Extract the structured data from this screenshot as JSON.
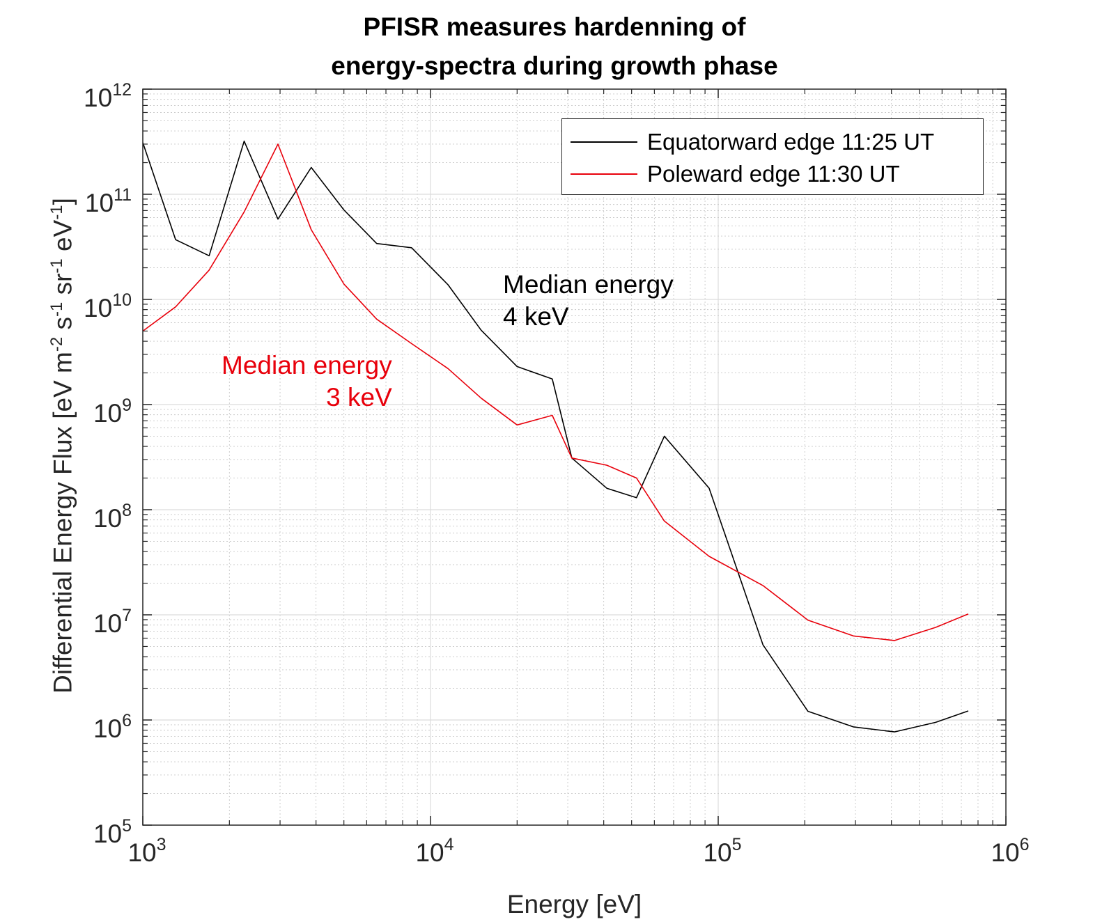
{
  "title_lines": [
    "PFISR measures hardenning of",
    "energy-spectra during growth phase"
  ],
  "chart_data": {
    "type": "line",
    "title": "PFISR measures hardenning of energy-spectra during growth phase",
    "xlabel": "Energy [eV]",
    "ylabel": "Differential Energy Flux [eV m-2 s-1 sr-1 eV-1]",
    "xscale": "log",
    "yscale": "log",
    "xlim": [
      1000,
      1000000
    ],
    "ylim": [
      100000,
      1000000000000
    ],
    "x_ticks": [
      1000,
      10000,
      100000,
      1000000
    ],
    "x_tick_labels": [
      {
        "base": "10",
        "exp": "3"
      },
      {
        "base": "10",
        "exp": "4"
      },
      {
        "base": "10",
        "exp": "5"
      },
      {
        "base": "10",
        "exp": "6"
      }
    ],
    "y_ticks": [
      100000,
      1000000,
      10000000,
      100000000,
      1000000000,
      10000000000,
      100000000000,
      1000000000000
    ],
    "y_tick_labels": [
      {
        "base": "10",
        "exp": "5"
      },
      {
        "base": "10",
        "exp": "6"
      },
      {
        "base": "10",
        "exp": "7"
      },
      {
        "base": "10",
        "exp": "8"
      },
      {
        "base": "10",
        "exp": "9"
      },
      {
        "base": "10",
        "exp": "10"
      },
      {
        "base": "10",
        "exp": "11"
      },
      {
        "base": "10",
        "exp": "12"
      }
    ],
    "grid": true,
    "minor_grid": true,
    "legend_position": "top-right",
    "series": [
      {
        "name": "Equatorward edge 11:25 UT",
        "color": "#000000",
        "x": [
          1000,
          1300,
          1700,
          2250,
          2950,
          3850,
          5000,
          6500,
          8600,
          11500,
          15000,
          20000,
          26500,
          31000,
          41000,
          52000,
          65000,
          93000,
          143000,
          205000,
          295000,
          410000,
          570000,
          740000
        ],
        "y": [
          310000000000,
          37000000000,
          26000000000,
          320000000000,
          58000000000,
          180000000000,
          71000000000,
          34000000000,
          31000000000,
          13800000000,
          5100000000,
          2300000000,
          1750000000,
          310000000,
          160000000,
          130000000,
          500000000,
          160000000,
          5200000,
          1210000,
          860000,
          770000,
          950000,
          1220000
        ]
      },
      {
        "name": "Poleward edge 11:30 UT",
        "color": "#e8000b",
        "x": [
          1000,
          1300,
          1700,
          2250,
          2950,
          3850,
          5000,
          6500,
          8600,
          11500,
          15000,
          20000,
          26500,
          31000,
          41000,
          52000,
          65000,
          93000,
          143000,
          205000,
          295000,
          410000,
          570000,
          740000
        ],
        "y": [
          5000000000,
          8500000000,
          19000000000,
          68000000000,
          300000000000,
          46000000000,
          14000000000,
          6500000000,
          3800000000,
          2200000000,
          1150000000,
          640000000,
          790000000,
          310000000,
          265000000,
          200000000,
          78000000,
          36000000,
          19000000,
          8900000,
          6300000,
          5700000,
          7600000,
          10200000
        ]
      }
    ],
    "annotations": [
      {
        "lines": [
          "Median energy",
          "4 keV"
        ],
        "color": "#000000",
        "align": "left"
      },
      {
        "lines": [
          "Median energy",
          "3 keV"
        ],
        "color": "#e8000b",
        "align": "right"
      }
    ]
  }
}
